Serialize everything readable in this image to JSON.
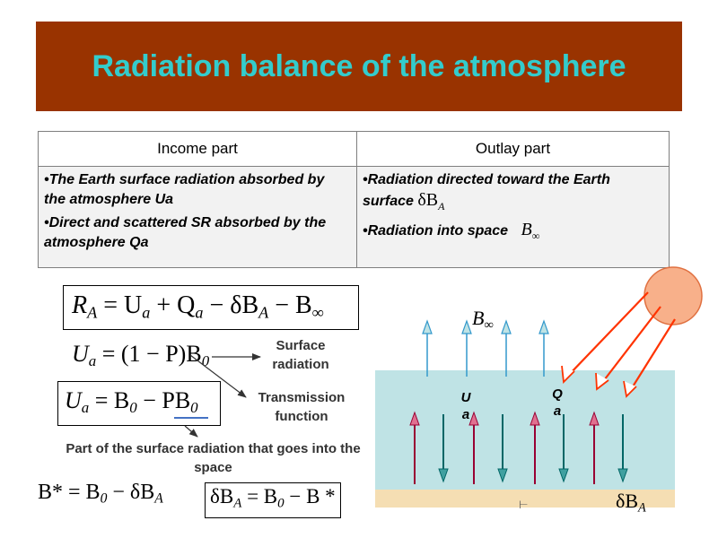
{
  "title": "Radiation balance of the atmosphere",
  "colors": {
    "banner": "#993300",
    "title": "#33cccc",
    "atmosphere": "#bfe3e5",
    "ground": "#f5deb3",
    "sun": "#f8b08a",
    "upward_arrow": "#3399cc",
    "downward_arrow": "#006666",
    "surface_arrow": "#990033",
    "solar_ray": "#ff3300"
  },
  "table": {
    "headers": [
      "Income part",
      "Outlay part"
    ],
    "income": [
      "•The Earth surface radiation absorbed by the atmosphere Ua",
      "•Direct and scattered SR absorbed by the atmosphere Qa"
    ],
    "outlay": [
      {
        "text": "•Radiation directed toward the Earth surface",
        "symbol": "δB",
        "sub": "A"
      },
      {
        "text": "•Radiation into space",
        "symbol": "B",
        "sub": "∞"
      }
    ]
  },
  "equations": {
    "balance": {
      "lhs": "R",
      "lhs_sub": "A",
      "eq": " = U",
      "s1": "a",
      "p1": " + Q",
      "s2": "a",
      "p2": " − δB",
      "s3": "A",
      "p3": " − B",
      "s4": "∞"
    },
    "ua1": {
      "a": "U",
      "a_sub": "a",
      "b": " = (1 − P)B",
      "b_sub": "0"
    },
    "ua2": {
      "a": "U",
      "a_sub": "a",
      "b": " = B",
      "b_sub": "0",
      "c": " − PB",
      "c_sub": "0"
    },
    "bstar": {
      "a": "B* = B",
      "a_sub": "0",
      "b": " − δB",
      "b_sub": "A"
    },
    "dba": {
      "a": "δB",
      "a_sub": "A",
      "b": " = B",
      "b_sub": "0",
      "c": " − B *"
    }
  },
  "annotations": {
    "surface": "Surface radiation",
    "transmission": "Transmission function",
    "part": "Part of the surface radiation that goes into the space"
  },
  "diagram": {
    "binf": {
      "symbol": "B",
      "sub": "∞"
    },
    "ua": "U a",
    "qa": "Q a",
    "dba": {
      "symbol": "δB",
      "sub": "A"
    },
    "tick": "⊢"
  }
}
